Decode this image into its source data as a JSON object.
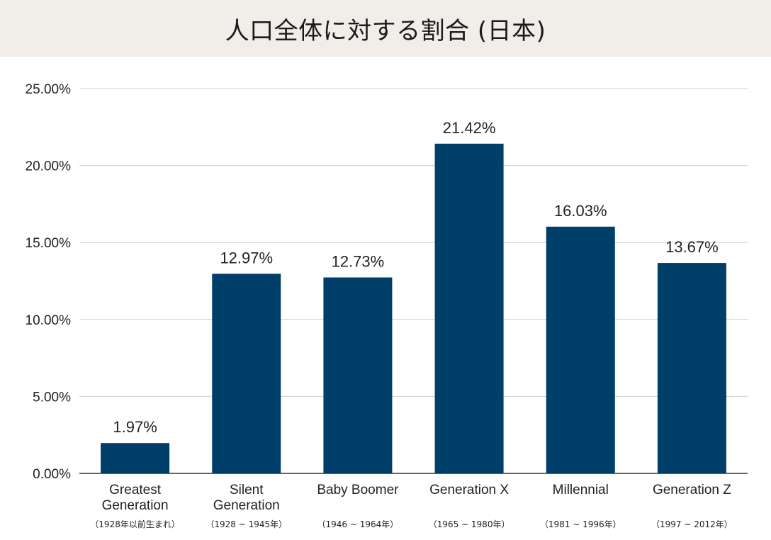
{
  "header": {
    "title": "人口全体に対する割合 (日本)"
  },
  "chart_data": {
    "type": "bar",
    "title": "人口全体に対する割合 (日本)",
    "categories": [
      [
        "Greatest",
        "Generation"
      ],
      [
        "Silent",
        "Generation"
      ],
      [
        "Baby Boomer"
      ],
      [
        "Generation X"
      ],
      [
        "Millennial"
      ],
      [
        "Generation Z"
      ]
    ],
    "subcategories": [
      "（1928年以前生まれ）",
      "（1928 ~ 1945年）",
      "（1946 ~ 1964年）",
      "（1965 ~ 1980年）",
      "（1981 ~ 1996年）",
      "（1997 ~ 2012年）"
    ],
    "values": [
      1.97,
      12.97,
      12.73,
      21.42,
      16.03,
      13.67
    ],
    "data_labels": [
      "1.97%",
      "12.97%",
      "12.73%",
      "21.42%",
      "16.03%",
      "13.67%"
    ],
    "ylim": [
      0,
      25
    ],
    "yticks": [
      0,
      5,
      10,
      15,
      20,
      25
    ],
    "ytick_labels": [
      "0.00%",
      "5.00%",
      "10.00%",
      "15.00%",
      "20.00%",
      "25.00%"
    ],
    "xlabel": "",
    "ylabel": "",
    "grid": true,
    "legend": "none",
    "colors": {
      "bar": "#003f69",
      "grid": "#cfcfcf",
      "axis": "#333333",
      "header_bg": "#f1eee9"
    }
  }
}
